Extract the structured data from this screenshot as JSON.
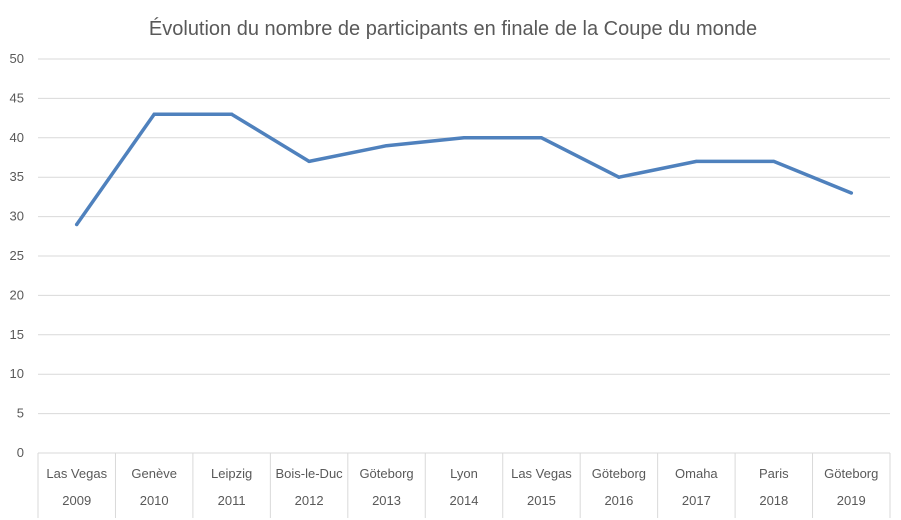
{
  "chart_data": {
    "type": "line",
    "title": "Évolution du nombre de participants en finale de la Coupe du monde",
    "xlabel": "",
    "ylabel": "",
    "ylim": [
      0,
      50
    ],
    "y_ticks": [
      "0",
      "5",
      "10",
      "15",
      "20",
      "25",
      "30",
      "35",
      "40",
      "45",
      "50"
    ],
    "grid": true,
    "legend": "none",
    "categories": [
      {
        "city": "Las Vegas",
        "year": "2009"
      },
      {
        "city": "Genève",
        "year": "2010"
      },
      {
        "city": "Leipzig",
        "year": "2011"
      },
      {
        "city": "Bois-le-Duc",
        "year": "2012"
      },
      {
        "city": "Göteborg",
        "year": "2013"
      },
      {
        "city": "Lyon",
        "year": "2014"
      },
      {
        "city": "Las Vegas",
        "year": "2015"
      },
      {
        "city": "Göteborg",
        "year": "2016"
      },
      {
        "city": "Omaha",
        "year": "2017"
      },
      {
        "city": "Paris",
        "year": "2018"
      },
      {
        "city": "Göteborg",
        "year": "2019"
      }
    ],
    "series": [
      {
        "values": [
          29,
          43,
          43,
          37,
          39,
          40,
          40,
          35,
          37,
          37,
          33
        ],
        "color": "#4f81bd"
      }
    ],
    "colors": {
      "line": "#4f81bd",
      "grid": "#d9d9d9",
      "text": "#595959"
    }
  }
}
